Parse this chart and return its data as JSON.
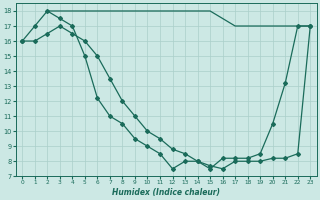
{
  "xlabel": "Humidex (Indice chaleur)",
  "xlim": [
    -0.5,
    23.5
  ],
  "ylim": [
    7,
    18.5
  ],
  "yticks": [
    7,
    8,
    9,
    10,
    11,
    12,
    13,
    14,
    15,
    16,
    17,
    18
  ],
  "xticks": [
    0,
    1,
    2,
    3,
    4,
    5,
    6,
    7,
    8,
    9,
    10,
    11,
    12,
    13,
    14,
    15,
    16,
    17,
    18,
    19,
    20,
    21,
    22,
    23
  ],
  "bg_color": "#cce8e4",
  "grid_color": "#aacfca",
  "line_color": "#1a6b5a",
  "line1_x": [
    2,
    3,
    4,
    5,
    6,
    7,
    8,
    9,
    10,
    11,
    12,
    13,
    14,
    15,
    16,
    17,
    18,
    19,
    20,
    21,
    22,
    23
  ],
  "line1_y": [
    18.0,
    18.0,
    18.0,
    18.0,
    18.0,
    18.0,
    18.0,
    18.0,
    18.0,
    18.0,
    18.0,
    18.0,
    18.0,
    18.0,
    17.5,
    17.0,
    17.0,
    17.0,
    17.0,
    17.0,
    17.0,
    17.0
  ],
  "line2_x": [
    0,
    1,
    2,
    3,
    4,
    5,
    6,
    7,
    8,
    9,
    10,
    11,
    12,
    13,
    14,
    15,
    16,
    17,
    18,
    19,
    20,
    21,
    22,
    23
  ],
  "line2_y": [
    16.0,
    17.0,
    18.0,
    17.5,
    17.0,
    15.0,
    12.2,
    11.0,
    10.5,
    9.5,
    9.0,
    8.5,
    7.5,
    8.0,
    8.0,
    7.5,
    8.2,
    8.2,
    8.2,
    8.5,
    10.5,
    13.2,
    17.0,
    17.0
  ],
  "line3_x": [
    0,
    1,
    2,
    3,
    4,
    5,
    6,
    7,
    8,
    9,
    10,
    11,
    12,
    13,
    14,
    15,
    16,
    17,
    18,
    19,
    20,
    21,
    22,
    23
  ],
  "line3_y": [
    16.0,
    16.0,
    16.5,
    17.0,
    16.5,
    16.0,
    15.0,
    13.5,
    12.0,
    11.0,
    10.0,
    9.5,
    8.8,
    8.5,
    8.0,
    7.7,
    7.5,
    8.0,
    8.0,
    8.0,
    8.2,
    8.2,
    8.5,
    17.0
  ]
}
